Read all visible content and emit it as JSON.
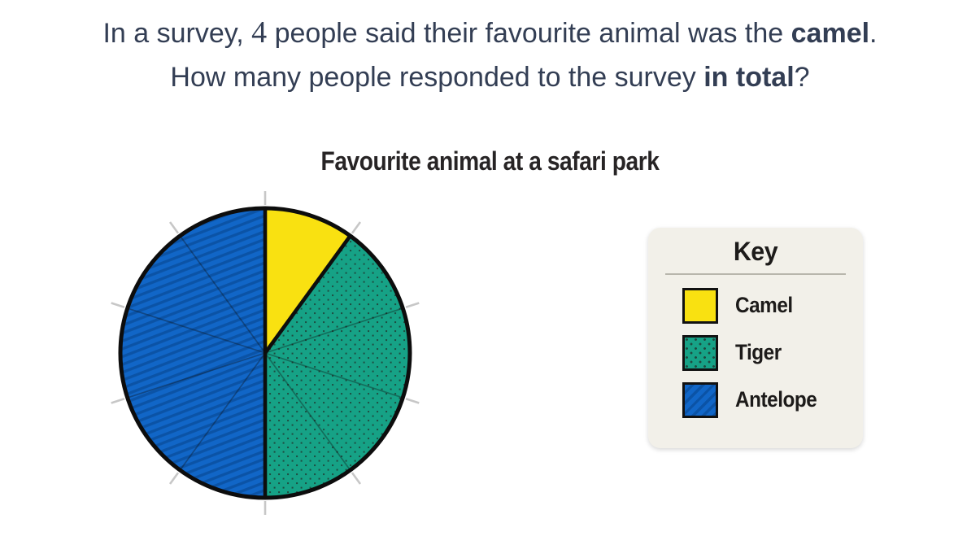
{
  "question": {
    "line1": {
      "pre": "In a survey, ",
      "number": "4",
      "mid": " people said their favourite animal was the ",
      "bold": "camel",
      "end": "."
    },
    "line2": {
      "pre": "How many people responded to the survey ",
      "bold": "in total",
      "end": "?"
    }
  },
  "chart": {
    "title": "Favourite animal at a safari park",
    "legend": {
      "title": "Key",
      "items": [
        {
          "label": "Camel",
          "pattern": "solid"
        },
        {
          "label": "Tiger",
          "pattern": "dots"
        },
        {
          "label": "Antelope",
          "pattern": "stripes"
        }
      ]
    }
  },
  "chart_data": {
    "type": "pie",
    "title": "Favourite animal at a safari park",
    "categories": [
      "Camel",
      "Tiger",
      "Antelope"
    ],
    "values": [
      1,
      4,
      5
    ],
    "value_unit": "equal divisions of the circle (10 divisions marked by outer ticks, 36° each)",
    "fractions": [
      0.1,
      0.4,
      0.5
    ],
    "angles_deg": [
      36,
      144,
      180
    ],
    "start_angle_deg": 0,
    "direction": "clockwise",
    "tick_divisions": 10,
    "grid": false,
    "legend_position": "right",
    "legend_title": "Key",
    "patterns": {
      "Camel": "solid",
      "Tiger": "dots",
      "Antelope": "diagonal-stripes"
    },
    "colors": {
      "camel": "#f9e111",
      "tiger_base": "#16a286",
      "tiger_dot": "#1e4b40",
      "antelope_base": "#1166c7",
      "antelope_stripe": "#0b53a6",
      "outline": "#0d0d0d",
      "tick": "#c7c7c7",
      "divider": "rgba(15,15,15,0.35)"
    }
  },
  "colors": {
    "question_text": "#333e54",
    "heading_text": "#272425",
    "key_panel_bg": "#f2f0e9",
    "key_divider_line": "#b8b6ac",
    "key_text": "#1d1b1a"
  }
}
